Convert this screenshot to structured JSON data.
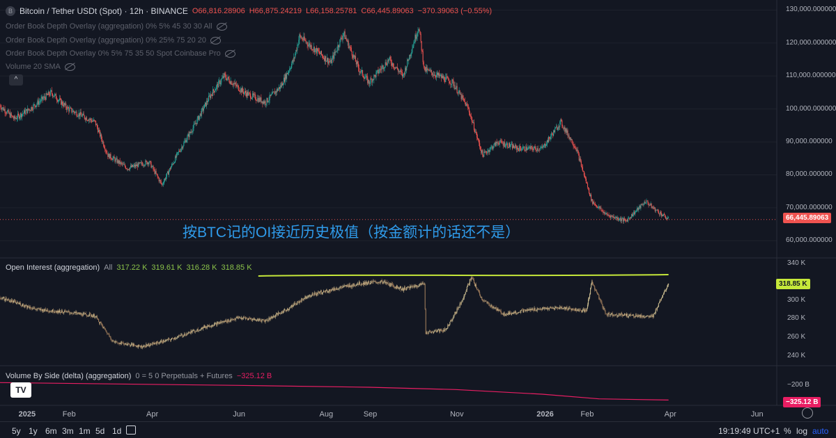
{
  "main_legend": {
    "logo": "B",
    "title": "Bitcoin / Tether USDt (Spot) · 12h · BINANCE",
    "open": "O66,816.28906",
    "high": "H66,875.24219",
    "low": "L66,158.25781",
    "close": "C66,445.89063",
    "change": "−370.39063 (−0.55%)"
  },
  "indicators": [
    "Order Book Depth Overlay (aggregation) 0% 5% 45 30 30 All",
    "Order Book Depth Overlay (aggregation) 0% 25% 75 20 20",
    "Order Book Depth Overlay 0% 5% 75 35 50 Spot Coinbase Pro",
    "Volume 20 SMA"
  ],
  "collapse_button": "^",
  "price_axis": [
    "130,000.000000",
    "120,000.000000",
    "110,000.000000",
    "100,000.000000",
    "90,000.000000",
    "80,000.000000",
    "70,000.000000",
    "60,000.000000"
  ],
  "current_price_tag": "66,445.89063",
  "annotation": "按BTC记的OI接近历史极值（按金额计的话还不是）",
  "oi_legend": {
    "name": "Open Interest (aggregation)",
    "scope": "All",
    "values": [
      "317.22 K",
      "319.61 K",
      "316.28 K",
      "318.85 K"
    ]
  },
  "oi_axis": [
    "340 K",
    "300 K",
    "280 K",
    "260 K",
    "240 K"
  ],
  "oi_tag": "318.85 K",
  "vbs_legend": {
    "name": "Volume By Side (delta) (aggregation)",
    "params": "0 = 5 0 Perpetuals + Futures",
    "value": "−325.12 B"
  },
  "vbs_axis": [
    "−200 B"
  ],
  "vbs_tag": "−325.12 B",
  "time_axis": [
    "2025",
    "Feb",
    "Apr",
    "Jun",
    "Aug",
    "Sep",
    "Nov",
    "2026",
    "Feb",
    "Apr",
    "Jun"
  ],
  "bottom_toolbar": {
    "ranges": [
      "5y",
      "1y",
      "6m",
      "3m",
      "1m",
      "5d",
      "1d"
    ],
    "clock": "19:19:49 UTC+1",
    "percent": "%",
    "log": "log",
    "auto": "auto"
  },
  "tv_logo": "TV",
  "colors": {
    "background": "#131722",
    "up": "#26a69a",
    "down": "#ef5350",
    "oi_candle": "#c7b98e",
    "oi_down": "#9c7a5a",
    "annotation": "#2f9bea",
    "highlight_line": "#c6e83a",
    "oi_tag_bg": "#c6e83a",
    "vbs_line": "#e91e63"
  },
  "chart_data": [
    {
      "type": "candlestick",
      "title": "Bitcoin / Tether USDt (Spot) · 12h · BINANCE",
      "ylim": [
        55000,
        132000
      ],
      "x_range": [
        "2024-12-15",
        "2026-06-30"
      ],
      "close_path": [
        [
          "2024-12-15",
          101000
        ],
        [
          "2024-12-25",
          97000
        ],
        [
          "2025-01-05",
          100000
        ],
        [
          "2025-01-20",
          105000
        ],
        [
          "2025-02-01",
          100000
        ],
        [
          "2025-02-20",
          96000
        ],
        [
          "2025-03-01",
          86000
        ],
        [
          "2025-03-15",
          82000
        ],
        [
          "2025-03-30",
          84000
        ],
        [
          "2025-04-08",
          77000
        ],
        [
          "2025-04-20",
          87000
        ],
        [
          "2025-05-01",
          95000
        ],
        [
          "2025-05-12",
          104000
        ],
        [
          "2025-05-22",
          110000
        ],
        [
          "2025-06-05",
          105000
        ],
        [
          "2025-06-20",
          102000
        ],
        [
          "2025-07-01",
          107000
        ],
        [
          "2025-07-10",
          115000
        ],
        [
          "2025-07-14",
          122000
        ],
        [
          "2025-07-25",
          118000
        ],
        [
          "2025-08-05",
          114000
        ],
        [
          "2025-08-14",
          123000
        ],
        [
          "2025-08-25",
          112000
        ],
        [
          "2025-09-01",
          108000
        ],
        [
          "2025-09-15",
          115000
        ],
        [
          "2025-09-25",
          110000
        ],
        [
          "2025-10-06",
          125000
        ],
        [
          "2025-10-10",
          112000
        ],
        [
          "2025-10-20",
          110000
        ],
        [
          "2025-10-30",
          108000
        ],
        [
          "2025-11-10",
          100000
        ],
        [
          "2025-11-20",
          86000
        ],
        [
          "2025-12-01",
          90000
        ],
        [
          "2025-12-15",
          88000
        ],
        [
          "2026-01-01",
          88000
        ],
        [
          "2026-01-14",
          96000
        ],
        [
          "2026-01-25",
          88000
        ],
        [
          "2026-02-05",
          72000
        ],
        [
          "2026-02-15",
          68000
        ],
        [
          "2026-03-01",
          66000
        ],
        [
          "2026-03-15",
          72000
        ],
        [
          "2026-03-20",
          70000
        ],
        [
          "2026-03-31",
          66445.89
        ]
      ]
    },
    {
      "type": "candlestick",
      "title": "Open Interest (aggregation)",
      "ylim": [
        230000,
        345000
      ],
      "close_path": [
        [
          "2024-12-15",
          303000
        ],
        [
          "2025-01-10",
          290000
        ],
        [
          "2025-02-01",
          287000
        ],
        [
          "2025-02-20",
          283000
        ],
        [
          "2025-03-05",
          255000
        ],
        [
          "2025-03-25",
          250000
        ],
        [
          "2025-04-15",
          258000
        ],
        [
          "2025-05-10",
          272000
        ],
        [
          "2025-06-01",
          281000
        ],
        [
          "2025-06-20",
          278000
        ],
        [
          "2025-07-05",
          290000
        ],
        [
          "2025-07-20",
          305000
        ],
        [
          "2025-08-10",
          313000
        ],
        [
          "2025-08-25",
          318000
        ],
        [
          "2025-09-10",
          320000
        ],
        [
          "2025-09-25",
          312000
        ],
        [
          "2025-10-10",
          318000
        ],
        [
          "2025-10-11",
          265000
        ],
        [
          "2025-10-25",
          268000
        ],
        [
          "2025-11-05",
          298000
        ],
        [
          "2025-11-12",
          325000
        ],
        [
          "2025-11-20",
          300000
        ],
        [
          "2025-12-05",
          285000
        ],
        [
          "2025-12-25",
          290000
        ],
        [
          "2026-01-15",
          292000
        ],
        [
          "2026-02-01",
          288000
        ],
        [
          "2026-02-05",
          320000
        ],
        [
          "2026-02-15",
          285000
        ],
        [
          "2026-03-01",
          284000
        ],
        [
          "2026-03-20",
          282000
        ],
        [
          "2026-03-25",
          300000
        ],
        [
          "2026-03-31",
          318850
        ]
      ],
      "annotation_line_y": 327000
    },
    {
      "type": "line",
      "title": "Volume By Side (delta) (aggregation)",
      "ylim": [
        -345000000000,
        -180000000000
      ],
      "points": [
        [
          "2024-12-15",
          -250000000000
        ],
        [
          "2025-06-01",
          -262000000000
        ],
        [
          "2025-09-01",
          -270000000000
        ],
        [
          "2025-11-01",
          -280000000000
        ],
        [
          "2026-01-01",
          -300000000000
        ],
        [
          "2026-02-10",
          -320000000000
        ],
        [
          "2026-03-31",
          -325120000000
        ]
      ]
    }
  ]
}
